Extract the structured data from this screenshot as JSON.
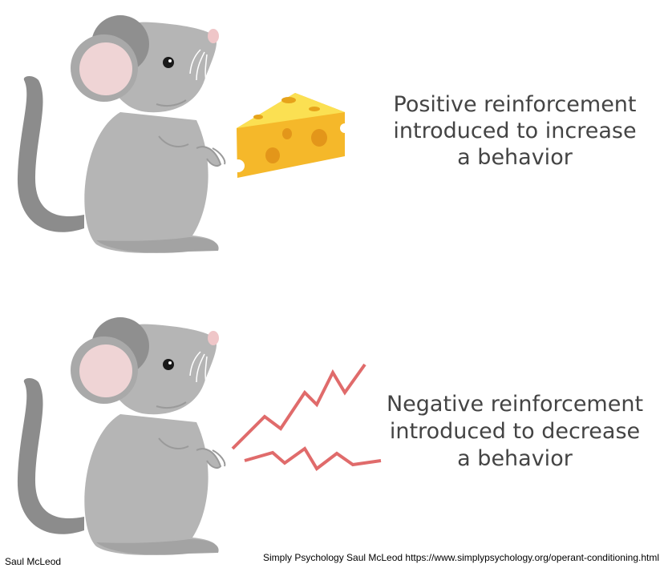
{
  "panels": [
    {
      "lines": [
        "Positive reinforcement",
        "introduced to increase",
        "a behavior"
      ]
    },
    {
      "lines": [
        "Negative reinforcement",
        "introduced to decrease",
        "a behavior"
      ]
    }
  ],
  "footer": {
    "left": "Saul McLeod",
    "right": "Simply Psychology Saul McLeod https://www.simplypsychology.org/operant-conditioning.html"
  }
}
